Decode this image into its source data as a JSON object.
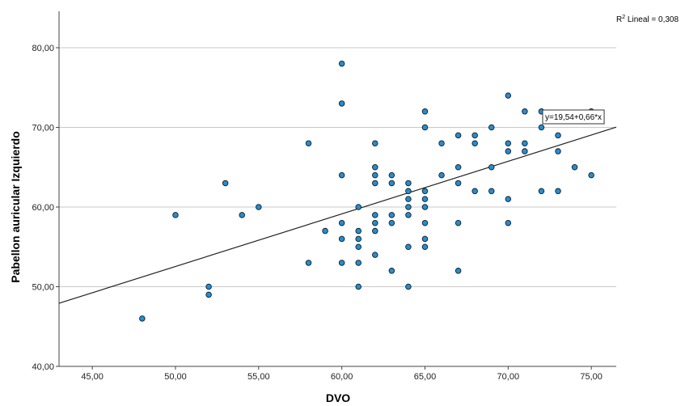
{
  "chart_data": {
    "type": "scatter",
    "xlabel": "DVO",
    "ylabel": "Pabellon auricular Izquierdo",
    "xlim": [
      43,
      76.5
    ],
    "ylim": [
      40,
      85
    ],
    "x_ticks": [
      "45,00",
      "50,00",
      "55,00",
      "60,00",
      "65,00",
      "70,00",
      "75,00"
    ],
    "y_ticks": [
      "40,00",
      "50,00",
      "60,00",
      "70,00",
      "80,00"
    ],
    "grid": "horizontal",
    "r2_label": "R",
    "r2_sup": "2",
    "r2_text": " Lineal = 0,308",
    "fit": {
      "intercept": 19.54,
      "slope": 0.66,
      "label": "y=19,54+0,66*x"
    },
    "marker_color": "#1f8fd6",
    "marker_edge": "#1a1a1a",
    "points": [
      [
        48,
        46
      ],
      [
        50,
        59
      ],
      [
        52,
        50
      ],
      [
        52,
        49
      ],
      [
        53,
        63
      ],
      [
        54,
        59
      ],
      [
        55,
        60
      ],
      [
        58,
        68
      ],
      [
        58,
        53
      ],
      [
        59,
        57
      ],
      [
        60,
        78
      ],
      [
        60,
        73
      ],
      [
        60,
        64
      ],
      [
        60,
        58
      ],
      [
        60,
        56
      ],
      [
        60,
        53
      ],
      [
        61,
        60
      ],
      [
        61,
        57
      ],
      [
        61,
        56
      ],
      [
        61,
        55
      ],
      [
        61,
        53
      ],
      [
        61,
        50
      ],
      [
        62,
        68
      ],
      [
        62,
        65
      ],
      [
        62,
        64
      ],
      [
        62,
        63
      ],
      [
        62,
        59
      ],
      [
        62,
        58
      ],
      [
        62,
        57
      ],
      [
        62,
        54
      ],
      [
        63,
        64
      ],
      [
        63,
        63
      ],
      [
        63,
        59
      ],
      [
        63,
        58
      ],
      [
        63,
        52
      ],
      [
        64,
        63
      ],
      [
        64,
        62
      ],
      [
        64,
        61
      ],
      [
        64,
        60
      ],
      [
        64,
        59
      ],
      [
        64,
        55
      ],
      [
        64,
        50
      ],
      [
        65,
        72
      ],
      [
        65,
        70
      ],
      [
        65,
        62
      ],
      [
        65,
        61
      ],
      [
        65,
        60
      ],
      [
        65,
        58
      ],
      [
        65,
        56
      ],
      [
        65,
        55
      ],
      [
        66,
        68
      ],
      [
        66,
        64
      ],
      [
        67,
        69
      ],
      [
        67,
        65
      ],
      [
        67,
        63
      ],
      [
        67,
        58
      ],
      [
        67,
        52
      ],
      [
        68,
        69
      ],
      [
        68,
        68
      ],
      [
        68,
        62
      ],
      [
        69,
        70
      ],
      [
        69,
        65
      ],
      [
        69,
        62
      ],
      [
        70,
        74
      ],
      [
        70,
        68
      ],
      [
        70,
        67
      ],
      [
        70,
        61
      ],
      [
        70,
        58
      ],
      [
        71,
        72
      ],
      [
        71,
        68
      ],
      [
        71,
        67
      ],
      [
        72,
        72
      ],
      [
        72,
        70
      ],
      [
        72,
        62
      ],
      [
        73,
        69
      ],
      [
        73,
        67
      ],
      [
        73,
        62
      ],
      [
        74,
        65
      ],
      [
        75,
        72
      ],
      [
        75,
        64
      ]
    ]
  }
}
